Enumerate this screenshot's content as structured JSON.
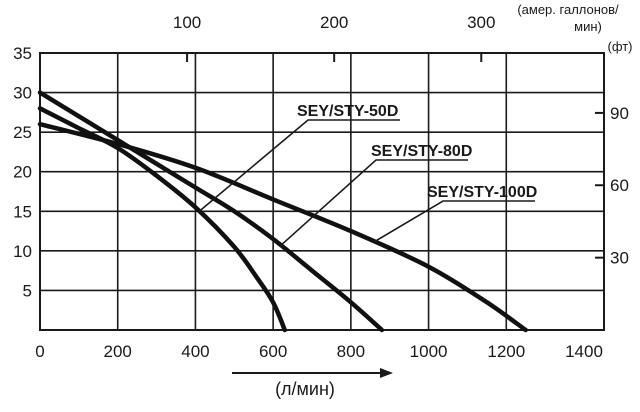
{
  "chart_data": {
    "type": "line",
    "title": "",
    "xlabel": "(л/мин)",
    "ylabel": "",
    "xlim": [
      0,
      1400
    ],
    "ylim": [
      0,
      35
    ],
    "x_ticks": [
      0,
      200,
      400,
      600,
      800,
      1000,
      1200,
      1400
    ],
    "y_ticks": [
      5,
      10,
      15,
      20,
      25,
      30,
      35
    ],
    "grid": true,
    "top_axis": {
      "label_line1": "(амер. галлонов/",
      "label_line2": "мин)",
      "tick_labels": [
        "100",
        "200",
        "300"
      ],
      "ticks_lpm": [
        378.5,
        757.1,
        1135.6
      ]
    },
    "right_axis": {
      "label": "(фт)",
      "tick_labels": [
        "30",
        "60",
        "90"
      ],
      "ticks_m": [
        9.14,
        18.29,
        27.43
      ]
    },
    "series": [
      {
        "name": "SEY/STY-50D",
        "points": [
          [
            0,
            28
          ],
          [
            100,
            25.5
          ],
          [
            200,
            23
          ],
          [
            300,
            19.5
          ],
          [
            400,
            15.5
          ],
          [
            500,
            10.5
          ],
          [
            560,
            6.5
          ],
          [
            600,
            3.5
          ],
          [
            630,
            0
          ]
        ]
      },
      {
        "name": "SEY/STY-80D",
        "points": [
          [
            0,
            30
          ],
          [
            100,
            27
          ],
          [
            200,
            24
          ],
          [
            300,
            21
          ],
          [
            400,
            18
          ],
          [
            500,
            15
          ],
          [
            600,
            11.5
          ],
          [
            700,
            7.5
          ],
          [
            800,
            3.5
          ],
          [
            880,
            0
          ]
        ]
      },
      {
        "name": "SEY/STY-100D",
        "points": [
          [
            0,
            26
          ],
          [
            200,
            23.5
          ],
          [
            400,
            20.5
          ],
          [
            600,
            16.5
          ],
          [
            800,
            12.5
          ],
          [
            1000,
            8
          ],
          [
            1150,
            3.5
          ],
          [
            1250,
            0
          ]
        ]
      }
    ]
  }
}
